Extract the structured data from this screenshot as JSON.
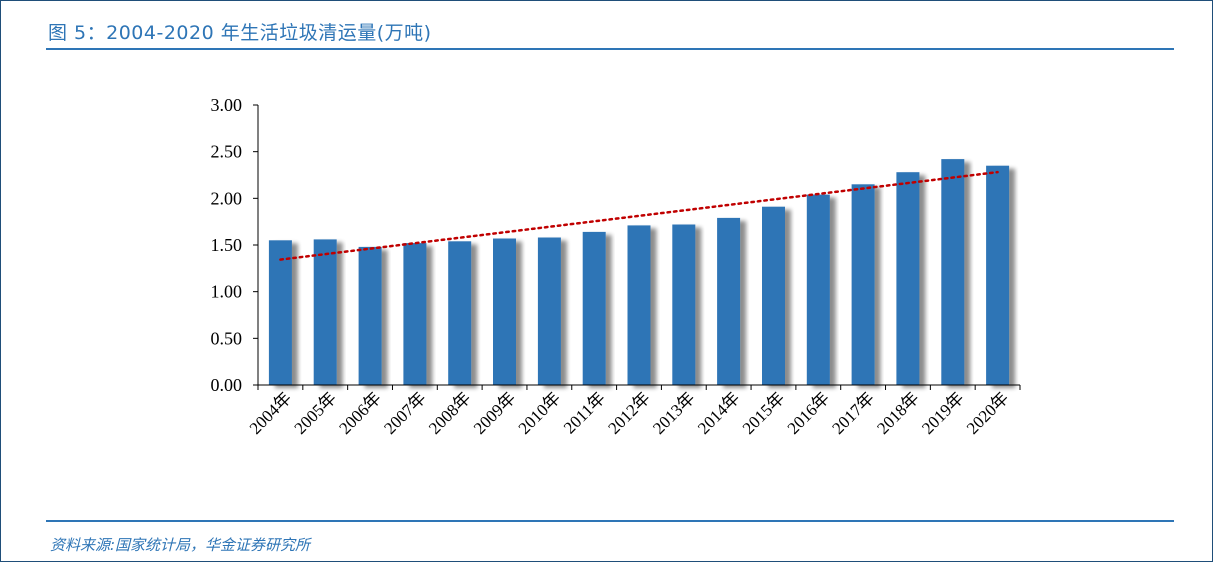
{
  "header": {
    "title": "图 5：2004-2020 年生活垃圾清运量(万吨)"
  },
  "footer": {
    "source": "资料来源:国家统计局，华金证券研究所"
  },
  "colors": {
    "accent": "#2e75b6",
    "bar": "#2e75b6",
    "trendline": "#c00000"
  },
  "chart_data": {
    "type": "bar",
    "title": "",
    "xlabel": "",
    "ylabel": "",
    "ylim": [
      0,
      3.0
    ],
    "yticks": [
      "0.00",
      "0.50",
      "1.00",
      "1.50",
      "2.00",
      "2.50",
      "3.00"
    ],
    "categories": [
      "2004年",
      "2005年",
      "2006年",
      "2007年",
      "2008年",
      "2009年",
      "2010年",
      "2011年",
      "2012年",
      "2013年",
      "2014年",
      "2015年",
      "2016年",
      "2017年",
      "2018年",
      "2019年",
      "2020年"
    ],
    "values": [
      1.55,
      1.56,
      1.48,
      1.52,
      1.54,
      1.57,
      1.58,
      1.64,
      1.71,
      1.72,
      1.79,
      1.91,
      2.04,
      2.15,
      2.28,
      2.42,
      2.35
    ],
    "trendline": {
      "type": "linear",
      "style": "dotted",
      "color": "#c00000"
    },
    "grid": false,
    "legend": "none"
  }
}
